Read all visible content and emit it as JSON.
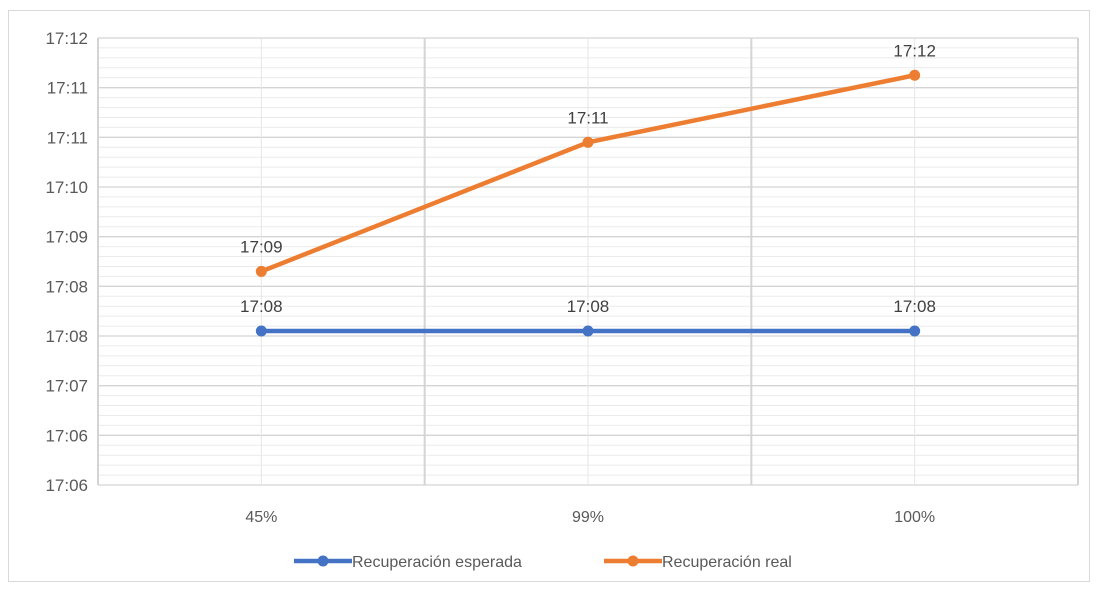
{
  "chart_data": {
    "type": "line",
    "categories": [
      "45%",
      "99%",
      "100%"
    ],
    "y_tick_labels": [
      "17:06",
      "17:06",
      "17:07",
      "17:08",
      "17:08",
      "17:09",
      "17:10",
      "17:11",
      "17:11",
      "17:12"
    ],
    "ylim_minutes": [
      0,
      18
    ],
    "grid": true,
    "legend_position": "bottom",
    "series": [
      {
        "name": "Recuperación esperada",
        "color": "#4472c4",
        "values": [
          6.2,
          6.2,
          6.2
        ],
        "labels": [
          "17:08",
          "17:08",
          "17:08"
        ]
      },
      {
        "name": "Recuperación real",
        "color": "#ed7d31",
        "values": [
          8.6,
          13.8,
          16.5
        ],
        "labels": [
          "17:09",
          "17:11",
          "17:12"
        ]
      }
    ]
  }
}
